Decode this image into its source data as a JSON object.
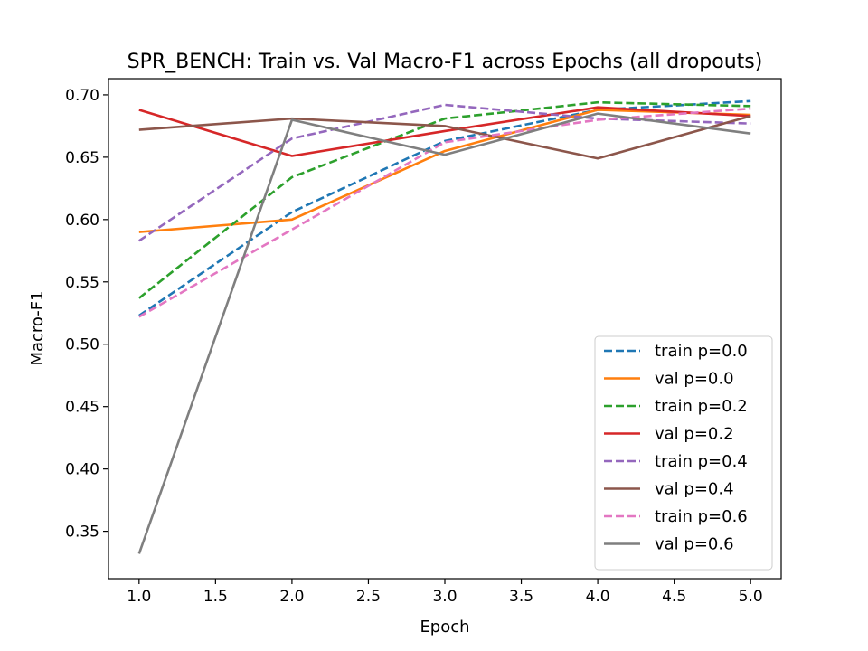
{
  "chart_data": {
    "type": "line",
    "title": "SPR_BENCH: Train vs. Val Macro-F1 across Epochs (all dropouts)",
    "xlabel": "Epoch",
    "ylabel": "Macro-F1",
    "xlim": [
      0.8,
      5.2
    ],
    "ylim": [
      0.312,
      0.713
    ],
    "x": [
      1,
      2,
      3,
      4,
      5
    ],
    "xticks": [
      1.0,
      1.5,
      2.0,
      2.5,
      3.0,
      3.5,
      4.0,
      4.5,
      5.0
    ],
    "xtick_labels": [
      "1.0",
      "1.5",
      "2.0",
      "2.5",
      "3.0",
      "3.5",
      "4.0",
      "4.5",
      "5.0"
    ],
    "yticks": [
      0.35,
      0.4,
      0.45,
      0.5,
      0.55,
      0.6,
      0.65,
      0.7
    ],
    "ytick_labels": [
      "0.35",
      "0.40",
      "0.45",
      "0.50",
      "0.55",
      "0.60",
      "0.65",
      "0.70"
    ],
    "grid": false,
    "legend_position": "bottom-right",
    "series": [
      {
        "name": "train p=0.0",
        "style": "dashed",
        "color": "#1f77b4",
        "values": [
          0.523,
          0.606,
          0.663,
          0.688,
          0.695
        ]
      },
      {
        "name": "val p=0.0",
        "style": "solid",
        "color": "#ff7f0e",
        "values": [
          0.59,
          0.6,
          0.655,
          0.688,
          0.684
        ]
      },
      {
        "name": "train p=0.2",
        "style": "dashed",
        "color": "#2ca02c",
        "values": [
          0.537,
          0.634,
          0.681,
          0.694,
          0.691
        ]
      },
      {
        "name": "val p=0.2",
        "style": "solid",
        "color": "#d62728",
        "values": [
          0.688,
          0.651,
          0.671,
          0.69,
          0.683
        ]
      },
      {
        "name": "train p=0.4",
        "style": "dashed",
        "color": "#9467bd",
        "values": [
          0.583,
          0.665,
          0.692,
          0.681,
          0.677
        ]
      },
      {
        "name": "val p=0.4",
        "style": "solid",
        "color": "#8c564b",
        "values": [
          0.672,
          0.681,
          0.675,
          0.649,
          0.683
        ]
      },
      {
        "name": "train p=0.6",
        "style": "dashed",
        "color": "#e377c2",
        "values": [
          0.522,
          0.592,
          0.662,
          0.68,
          0.689
        ]
      },
      {
        "name": "val p=0.6",
        "style": "solid",
        "color": "#7f7f7f",
        "values": [
          0.332,
          0.68,
          0.652,
          0.685,
          0.669
        ]
      }
    ]
  }
}
